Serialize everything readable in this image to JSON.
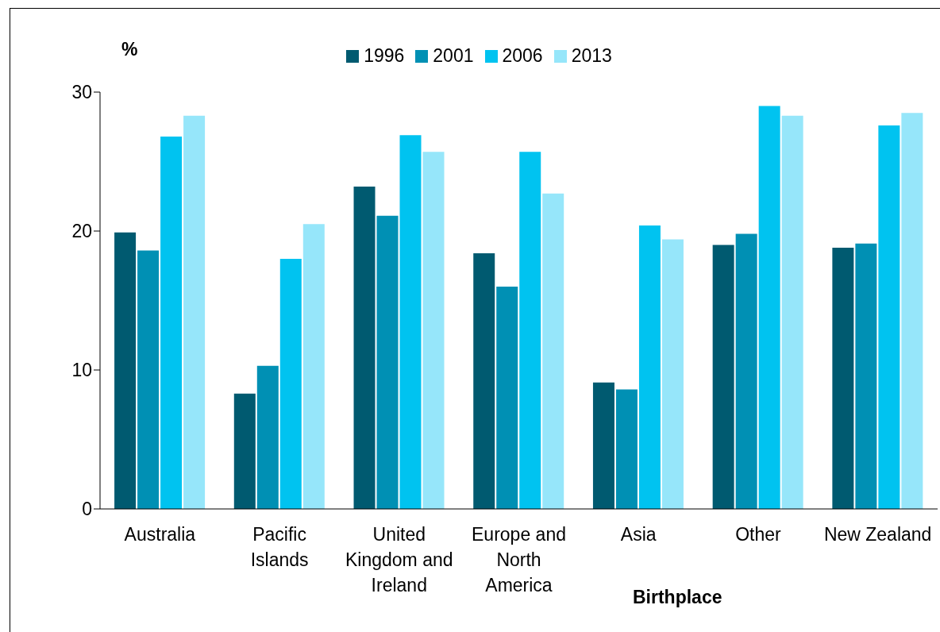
{
  "chart_data": {
    "type": "bar",
    "ylabel": "%",
    "xlabel": "Birthplace",
    "categories": [
      "Australia",
      "Pacific Islands",
      "United Kingdom and Ireland",
      "Europe and North America",
      "Asia",
      "Other",
      "New Zealand"
    ],
    "series": [
      {
        "name": "1996",
        "color": "#005a70",
        "values": [
          19.9,
          8.3,
          23.2,
          18.4,
          9.1,
          19.0,
          18.8
        ]
      },
      {
        "name": "2001",
        "color": "#0090b4",
        "values": [
          18.6,
          10.3,
          21.1,
          16.0,
          8.6,
          19.8,
          19.1
        ]
      },
      {
        "name": "2006",
        "color": "#00c3f0",
        "values": [
          26.8,
          18.0,
          26.9,
          25.7,
          20.4,
          29.0,
          27.6
        ]
      },
      {
        "name": "2013",
        "color": "#96e6fa",
        "values": [
          28.3,
          20.5,
          25.7,
          22.7,
          19.4,
          28.3,
          28.5
        ]
      }
    ],
    "ylim": [
      0,
      30
    ],
    "yticks": [
      0,
      10,
      20,
      30
    ],
    "grid": false,
    "legend": "top"
  }
}
